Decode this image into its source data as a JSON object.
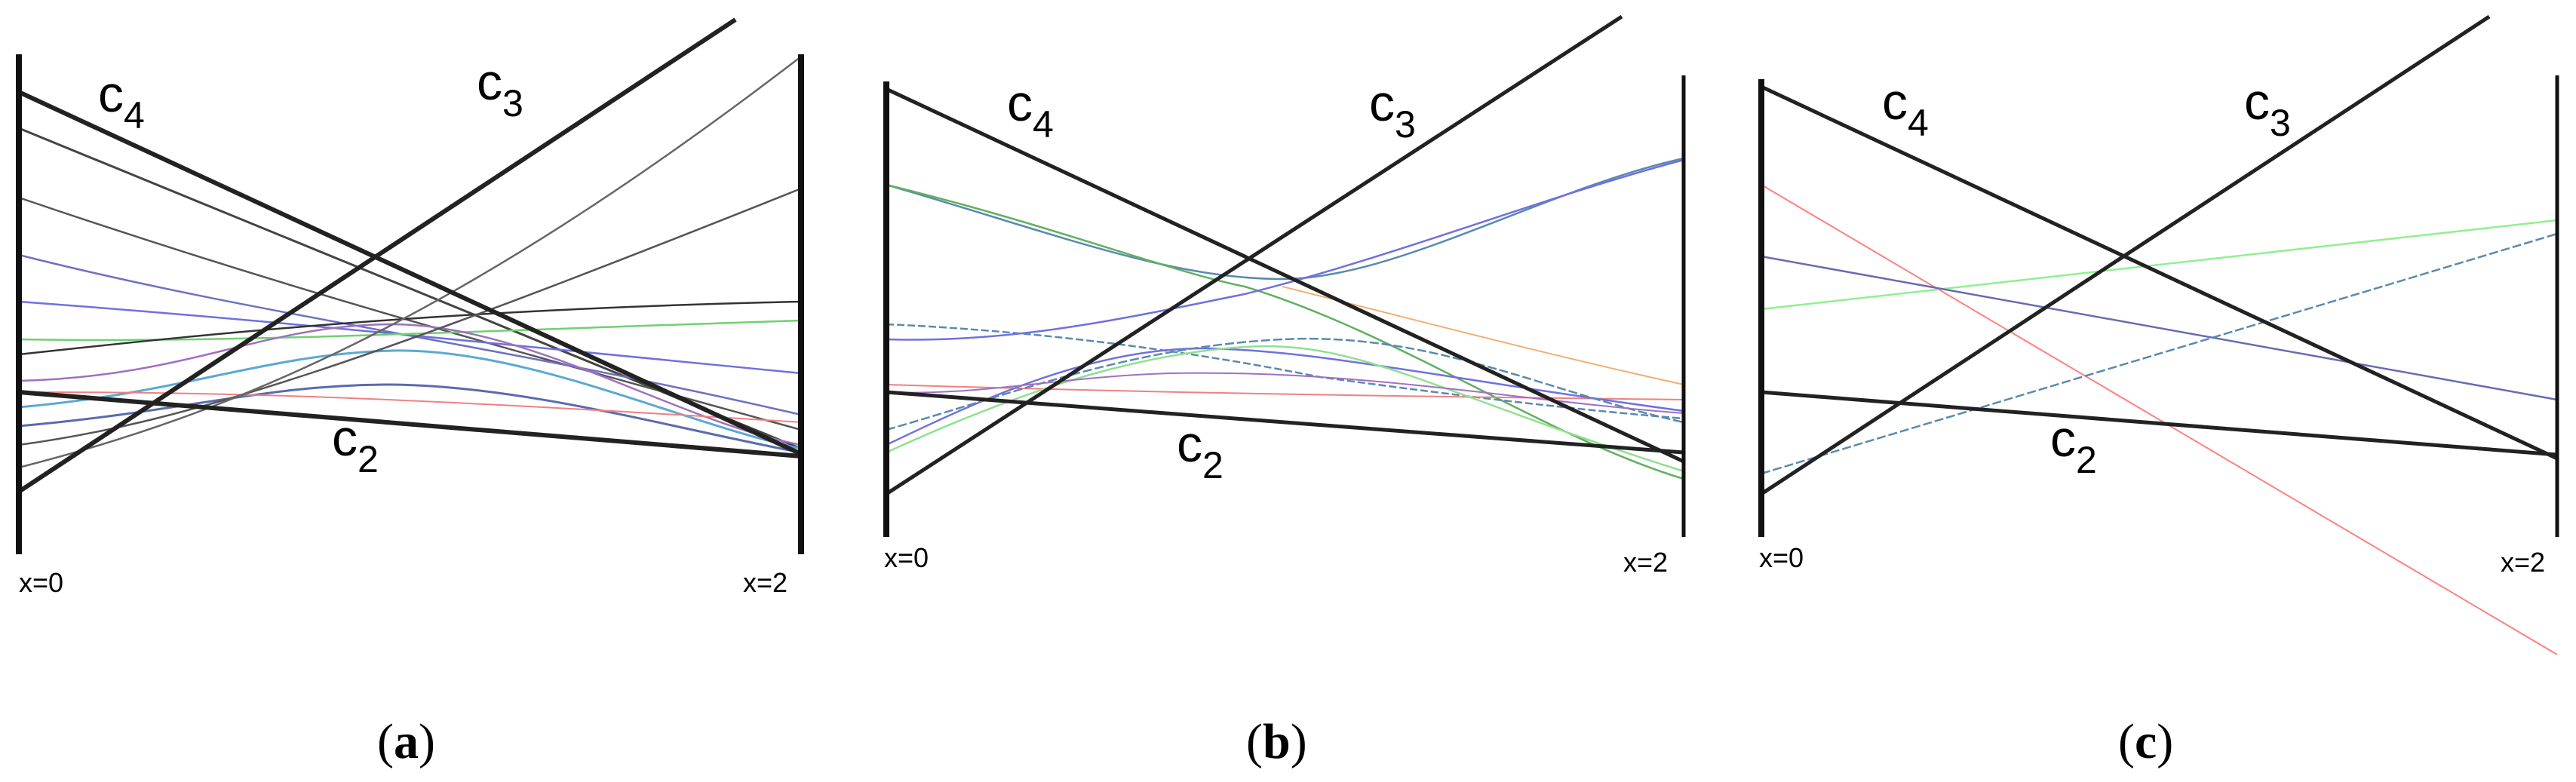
{
  "panels": [
    {
      "caption": {
        "open": "(",
        "letter": "a",
        "close": ")"
      },
      "labels": {
        "c4": {
          "base": "c",
          "sub": "4"
        },
        "c3": {
          "base": "c",
          "sub": "3"
        },
        "c2": {
          "base": "c",
          "sub": "2"
        },
        "x_left": "x=0",
        "x_right": "x=2"
      },
      "curves": [
        {
          "color": "#333333"
        },
        {
          "color": "#555555"
        },
        {
          "color": "#666666"
        },
        {
          "color": "#7070c0"
        },
        {
          "color": "#70d070"
        },
        {
          "color": "#a070c0"
        },
        {
          "color": "#5aaad0"
        },
        {
          "color": "#909090"
        }
      ]
    },
    {
      "caption": {
        "open": "(",
        "letter": "b",
        "close": ")"
      },
      "labels": {
        "c4": {
          "base": "c",
          "sub": "4"
        },
        "c3": {
          "base": "c",
          "sub": "3"
        },
        "c2": {
          "base": "c",
          "sub": "2"
        },
        "x_left": "x=0",
        "x_right": "x=2"
      },
      "curves": [
        {
          "color": "#60b060"
        },
        {
          "color": "#7070e0"
        },
        {
          "color": "#5a8ab0"
        },
        {
          "color": "#f0b070"
        },
        {
          "color": "#f08080"
        },
        {
          "color": "#90e090"
        }
      ]
    },
    {
      "caption": {
        "open": "(",
        "letter": "c",
        "close": ")"
      },
      "labels": {
        "c4": {
          "base": "c",
          "sub": "4"
        },
        "c3": {
          "base": "c",
          "sub": "3"
        },
        "c2": {
          "base": "c",
          "sub": "2"
        },
        "x_left": "x=0",
        "x_right": "x=2"
      },
      "curves": [
        {
          "color": "#ff8080"
        },
        {
          "color": "#90f090"
        },
        {
          "color": "#6a6ab0"
        },
        {
          "color": "#5a8ab0"
        }
      ]
    }
  ]
}
